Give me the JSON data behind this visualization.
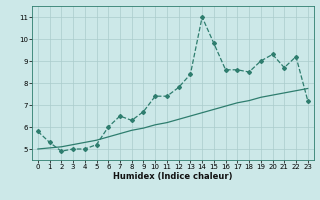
{
  "title": "",
  "xlabel": "Humidex (Indice chaleur)",
  "ylabel": "",
  "x": [
    0,
    1,
    2,
    3,
    4,
    5,
    6,
    7,
    8,
    9,
    10,
    11,
    12,
    13,
    14,
    15,
    16,
    17,
    18,
    19,
    20,
    21,
    22,
    23
  ],
  "line1_y": [
    5.8,
    5.3,
    4.9,
    5.0,
    5.0,
    5.2,
    6.0,
    6.5,
    6.3,
    6.7,
    7.4,
    7.4,
    7.8,
    8.4,
    11.0,
    9.8,
    8.6,
    8.6,
    8.5,
    9.0,
    9.3,
    8.7,
    9.2,
    7.2
  ],
  "line2_y": [
    5.0,
    5.05,
    5.1,
    5.2,
    5.3,
    5.4,
    5.55,
    5.7,
    5.85,
    5.95,
    6.1,
    6.2,
    6.35,
    6.5,
    6.65,
    6.8,
    6.95,
    7.1,
    7.2,
    7.35,
    7.45,
    7.55,
    7.65,
    7.75
  ],
  "line_color": "#2e7d6e",
  "bg_color": "#cce8e8",
  "grid_color": "#aacccc",
  "ylim": [
    4.5,
    11.5
  ],
  "xlim": [
    -0.5,
    23.5
  ],
  "yticks": [
    5,
    6,
    7,
    8,
    9,
    10,
    11
  ],
  "xticks": [
    0,
    1,
    2,
    3,
    4,
    5,
    6,
    7,
    8,
    9,
    10,
    11,
    12,
    13,
    14,
    15,
    16,
    17,
    18,
    19,
    20,
    21,
    22,
    23
  ],
  "marker": "D",
  "marker_size": 2,
  "line_width": 0.9,
  "tick_fontsize": 5,
  "xlabel_fontsize": 6
}
